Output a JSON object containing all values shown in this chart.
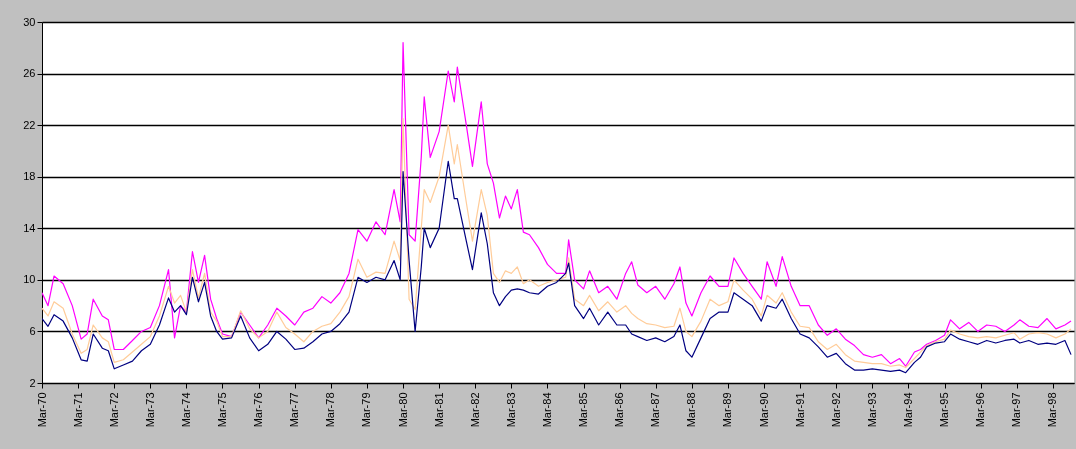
{
  "chart_data": {
    "type": "line",
    "x": [
      "1970-03",
      "1970-05",
      "1970-07",
      "1970-10",
      "1971-01",
      "1971-04",
      "1971-06",
      "1971-08",
      "1971-11",
      "1972-01",
      "1972-03",
      "1972-06",
      "1972-09",
      "1972-12",
      "1973-03",
      "1973-06",
      "1973-09",
      "1973-11",
      "1974-01",
      "1974-03",
      "1974-05",
      "1974-07",
      "1974-09",
      "1974-11",
      "1975-01",
      "1975-03",
      "1975-06",
      "1975-09",
      "1975-12",
      "1976-03",
      "1976-06",
      "1976-09",
      "1976-12",
      "1977-03",
      "1977-06",
      "1977-09",
      "1977-12",
      "1978-03",
      "1978-06",
      "1978-09",
      "1978-12",
      "1979-03",
      "1979-06",
      "1979-09",
      "1979-12",
      "1980-02",
      "1980-03",
      "1980-05",
      "1980-07",
      "1980-09",
      "1980-10",
      "1980-12",
      "1981-03",
      "1981-06",
      "1981-08",
      "1981-09",
      "1981-12",
      "1982-02",
      "1982-05",
      "1982-07",
      "1982-09",
      "1982-11",
      "1983-01",
      "1983-03",
      "1983-05",
      "1983-07",
      "1983-09",
      "1983-12",
      "1984-03",
      "1984-06",
      "1984-09",
      "1984-10",
      "1984-12",
      "1985-03",
      "1985-05",
      "1985-08",
      "1985-11",
      "1986-02",
      "1986-05",
      "1986-07",
      "1986-09",
      "1986-12",
      "1987-03",
      "1987-06",
      "1987-09",
      "1987-11",
      "1988-01",
      "1988-03",
      "1988-06",
      "1988-09",
      "1988-12",
      "1989-03",
      "1989-05",
      "1989-08",
      "1989-11",
      "1990-02",
      "1990-04",
      "1990-07",
      "1990-09",
      "1990-12",
      "1991-03",
      "1991-06",
      "1991-09",
      "1991-12",
      "1992-03",
      "1992-06",
      "1992-09",
      "1992-12",
      "1993-03",
      "1993-06",
      "1993-09",
      "1993-12",
      "1994-02",
      "1994-05",
      "1994-07",
      "1994-09",
      "1994-12",
      "1995-03",
      "1995-05",
      "1995-08",
      "1995-11",
      "1996-02",
      "1996-05",
      "1996-08",
      "1996-11",
      "1997-02",
      "1997-04",
      "1997-07",
      "1997-10",
      "1998-01",
      "1998-04",
      "1998-07",
      "1998-09"
    ],
    "series": [
      {
        "color": "#ff00ff",
        "values": [
          9.0,
          8.0,
          10.3,
          9.7,
          8.0,
          5.4,
          5.8,
          8.5,
          7.2,
          6.9,
          4.6,
          4.6,
          5.3,
          6.0,
          6.3,
          8.0,
          10.8,
          5.5,
          8.0,
          7.5,
          12.2,
          9.8,
          11.9,
          8.5,
          7.0,
          5.8,
          5.6,
          7.5,
          6.5,
          5.5,
          6.5,
          7.8,
          7.2,
          6.5,
          7.5,
          7.8,
          8.7,
          8.2,
          9.0,
          10.5,
          13.9,
          13.0,
          14.5,
          13.5,
          17.0,
          14.5,
          28.4,
          13.5,
          13.0,
          19.5,
          24.2,
          19.5,
          21.5,
          26.2,
          23.8,
          26.5,
          22.0,
          18.8,
          23.8,
          19.0,
          17.5,
          14.8,
          16.5,
          15.5,
          17.0,
          13.7,
          13.5,
          12.5,
          11.2,
          10.5,
          10.5,
          13.1,
          10.0,
          9.3,
          10.7,
          9.0,
          9.5,
          8.5,
          10.5,
          11.4,
          9.6,
          9.0,
          9.5,
          8.5,
          9.7,
          11.0,
          8.2,
          7.2,
          9.0,
          10.3,
          9.5,
          9.5,
          11.7,
          10.5,
          9.5,
          8.5,
          11.4,
          9.5,
          11.8,
          9.5,
          8.0,
          8.0,
          6.5,
          5.7,
          6.2,
          5.4,
          4.9,
          4.2,
          4.0,
          4.2,
          3.5,
          3.9,
          3.3,
          4.4,
          4.6,
          5.0,
          5.3,
          5.7,
          6.9,
          6.2,
          6.7,
          6.0,
          6.5,
          6.4,
          6.0,
          6.5,
          6.9,
          6.4,
          6.3,
          7.0,
          6.2,
          6.5,
          6.8
        ]
      },
      {
        "color": "#ffcc99",
        "values": [
          7.8,
          7.2,
          8.3,
          7.8,
          5.8,
          4.3,
          4.6,
          6.5,
          5.5,
          5.2,
          3.6,
          3.8,
          4.4,
          5.0,
          5.6,
          7.2,
          9.5,
          8.2,
          8.8,
          7.5,
          10.8,
          8.6,
          10.5,
          7.5,
          6.8,
          5.6,
          5.6,
          7.6,
          6.2,
          5.5,
          6.0,
          7.5,
          6.3,
          5.8,
          5.2,
          6.0,
          6.4,
          6.6,
          7.5,
          8.7,
          11.6,
          10.2,
          10.6,
          10.5,
          13.0,
          11.5,
          22.5,
          8.5,
          7.7,
          14.0,
          17.0,
          16.0,
          18.0,
          22.0,
          19.0,
          20.5,
          16.0,
          13.0,
          17.0,
          15.0,
          10.5,
          9.8,
          10.7,
          10.5,
          11.0,
          9.7,
          10.0,
          9.5,
          9.8,
          10.0,
          10.2,
          11.7,
          8.5,
          8.0,
          8.8,
          7.6,
          8.3,
          7.5,
          8.0,
          7.4,
          7.0,
          6.6,
          6.5,
          6.3,
          6.4,
          7.8,
          6.0,
          5.6,
          6.8,
          8.5,
          8.0,
          8.3,
          10.0,
          9.2,
          8.5,
          7.2,
          8.8,
          8.2,
          9.0,
          7.5,
          6.4,
          6.3,
          5.2,
          4.6,
          5.0,
          4.2,
          3.7,
          3.6,
          3.5,
          3.5,
          3.3,
          3.4,
          3.2,
          3.9,
          4.4,
          4.9,
          5.2,
          5.4,
          6.1,
          5.8,
          5.6,
          5.5,
          5.6,
          5.5,
          5.7,
          5.9,
          5.4,
          5.8,
          5.9,
          5.8,
          5.5,
          5.8,
          6.2
        ]
      },
      {
        "color": "#000080",
        "values": [
          7.0,
          6.4,
          7.3,
          6.8,
          5.5,
          3.8,
          3.7,
          5.8,
          4.7,
          4.5,
          3.1,
          3.4,
          3.7,
          4.5,
          5.0,
          6.5,
          8.6,
          7.5,
          8.0,
          7.3,
          10.2,
          8.3,
          9.8,
          7.2,
          6.0,
          5.4,
          5.5,
          7.2,
          5.5,
          4.5,
          5.0,
          6.0,
          5.4,
          4.6,
          4.7,
          5.2,
          5.8,
          6.0,
          6.6,
          7.5,
          10.2,
          9.8,
          10.2,
          10.0,
          11.5,
          10.0,
          18.4,
          11.5,
          6.0,
          11.0,
          14.0,
          12.5,
          14.0,
          19.2,
          16.3,
          16.3,
          13.0,
          10.8,
          15.2,
          12.8,
          9.0,
          8.0,
          8.7,
          9.2,
          9.3,
          9.2,
          9.0,
          8.9,
          9.5,
          9.8,
          10.5,
          11.3,
          8.0,
          7.0,
          7.8,
          6.5,
          7.5,
          6.5,
          6.5,
          5.8,
          5.6,
          5.3,
          5.5,
          5.2,
          5.6,
          6.5,
          4.5,
          4.0,
          5.5,
          7.0,
          7.5,
          7.5,
          9.0,
          8.5,
          8.0,
          6.8,
          8.0,
          7.8,
          8.5,
          7.0,
          5.8,
          5.5,
          4.8,
          4.0,
          4.3,
          3.5,
          3.0,
          3.0,
          3.1,
          3.0,
          2.9,
          3.0,
          2.8,
          3.6,
          4.0,
          4.8,
          5.1,
          5.2,
          5.8,
          5.4,
          5.2,
          5.0,
          5.3,
          5.1,
          5.3,
          5.4,
          5.1,
          5.3,
          5.0,
          5.1,
          5.0,
          5.3,
          4.2
        ]
      }
    ],
    "xlim": [
      "1970-03",
      "1998-10"
    ],
    "xticks": [
      {
        "value": "1970-03",
        "label": "Mar-70"
      },
      {
        "value": "1971-03",
        "label": "Mar-71"
      },
      {
        "value": "1972-03",
        "label": "Mar-72"
      },
      {
        "value": "1973-03",
        "label": "Mar-73"
      },
      {
        "value": "1974-03",
        "label": "Mar-74"
      },
      {
        "value": "1975-03",
        "label": "Mar-75"
      },
      {
        "value": "1976-03",
        "label": "Mar-76"
      },
      {
        "value": "1977-03",
        "label": "Mar-77"
      },
      {
        "value": "1978-03",
        "label": "Mar-78"
      },
      {
        "value": "1979-03",
        "label": "Mar-79"
      },
      {
        "value": "1980-03",
        "label": "Mar-80"
      },
      {
        "value": "1981-03",
        "label": "Mar-81"
      },
      {
        "value": "1982-03",
        "label": "Mar-82"
      },
      {
        "value": "1983-03",
        "label": "Mar-83"
      },
      {
        "value": "1984-03",
        "label": "Mar-84"
      },
      {
        "value": "1985-03",
        "label": "Mar-85"
      },
      {
        "value": "1986-03",
        "label": "Mar-86"
      },
      {
        "value": "1987-03",
        "label": "Mar-87"
      },
      {
        "value": "1988-03",
        "label": "Mar-88"
      },
      {
        "value": "1989-03",
        "label": "Mar-89"
      },
      {
        "value": "1990-03",
        "label": "Mar-90"
      },
      {
        "value": "1991-03",
        "label": "Mar-91"
      },
      {
        "value": "1992-03",
        "label": "Mar-92"
      },
      {
        "value": "1993-03",
        "label": "Mar-93"
      },
      {
        "value": "1994-03",
        "label": "Mar-94"
      },
      {
        "value": "1995-03",
        "label": "Mar-95"
      },
      {
        "value": "1996-03",
        "label": "Mar-96"
      },
      {
        "value": "1997-03",
        "label": "Mar-97"
      },
      {
        "value": "1998-03",
        "label": "Mar-98"
      }
    ],
    "ylim": [
      2,
      30
    ],
    "yticks": [
      2,
      6,
      10,
      14,
      18,
      22,
      26,
      30
    ],
    "grid": "y"
  }
}
